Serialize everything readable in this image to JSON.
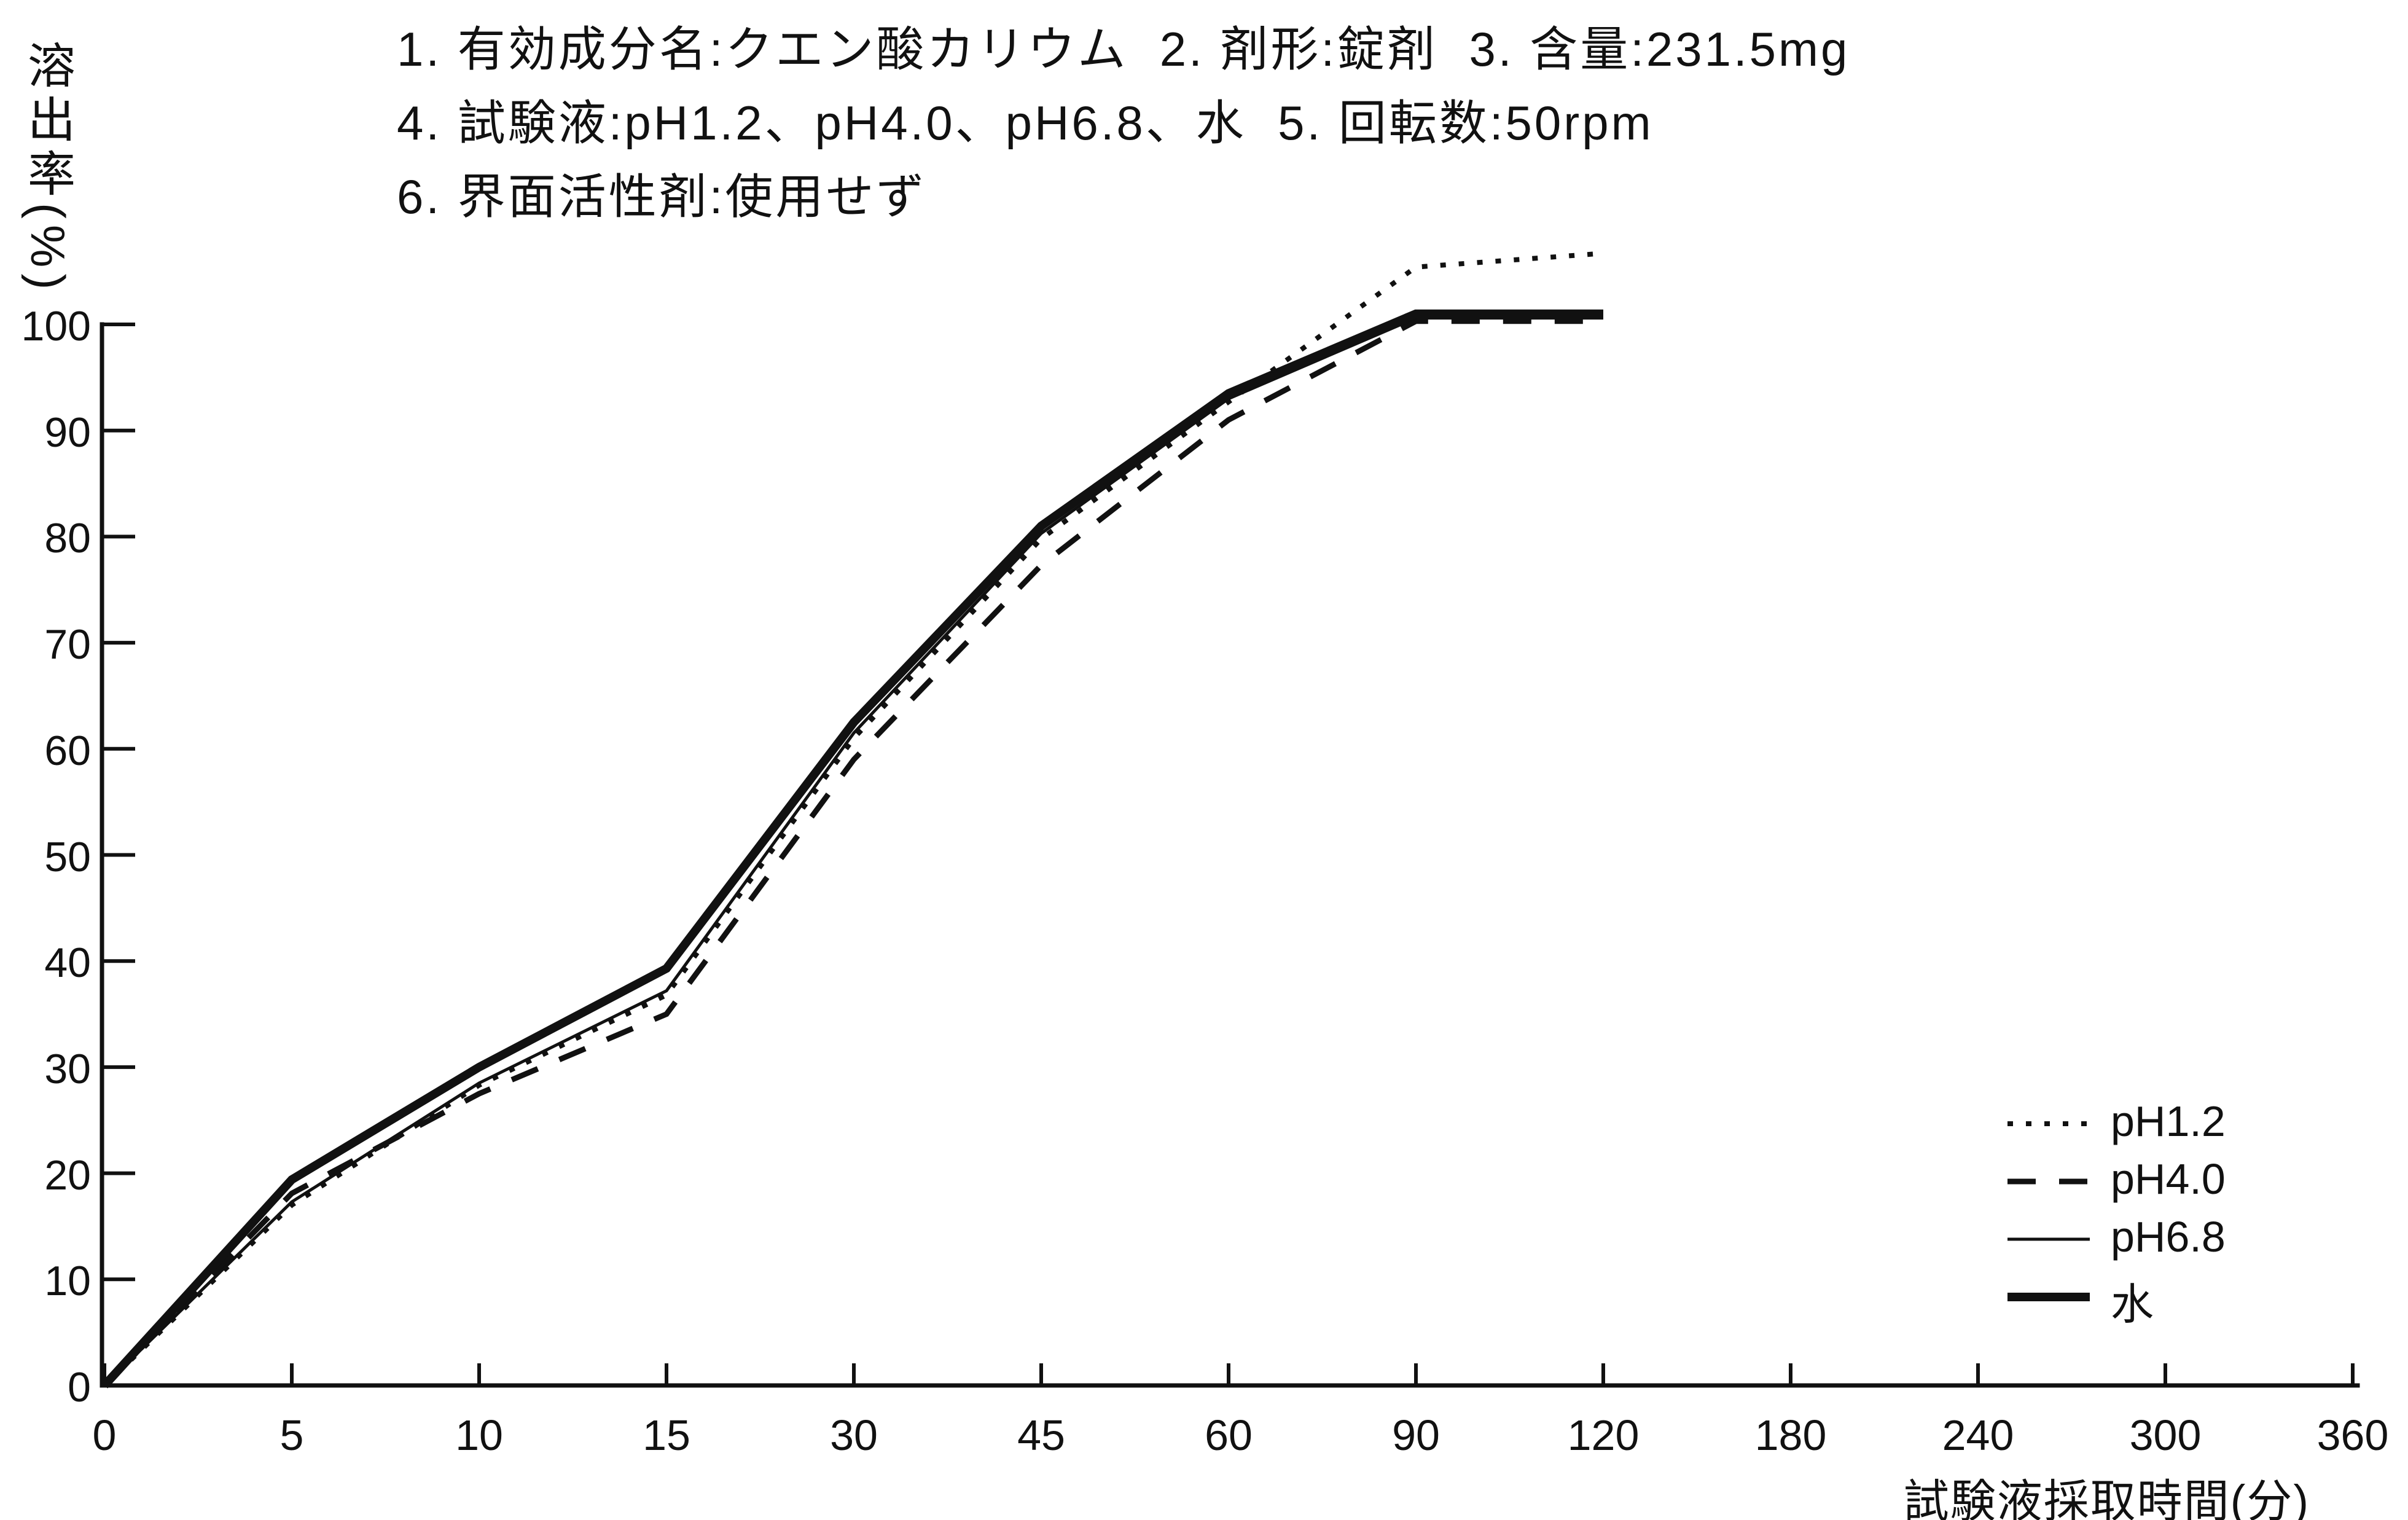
{
  "header": {
    "line1": "1. 有効成分名:クエン酸カリウム  2. 剤形:錠剤  3. 含量:231.5mg",
    "line2": "4. 試験液:pH1.2、pH4.0、pH6.8、水  5. 回転数:50rpm",
    "line3": "6. 界面活性剤:使用せず"
  },
  "y_axis": {
    "label": "溶出率(%)",
    "ticks": [
      "100",
      "90",
      "80",
      "70",
      "60",
      "50",
      "40",
      "30",
      "20",
      "10",
      "0"
    ]
  },
  "x_axis": {
    "label": "試験液採取時間(分)",
    "ticks": [
      "0",
      "5",
      "10",
      "15",
      "30",
      "45",
      "60",
      "90",
      "120",
      "180",
      "240",
      "300",
      "360"
    ]
  },
  "colors": {
    "ink": "#111111",
    "paper": "#ffffff"
  },
  "chart_data": {
    "type": "line",
    "title": "",
    "xlabel": "試験液採取時間(分)",
    "ylabel": "溶出率(%)",
    "x": [
      0,
      5,
      10,
      15,
      30,
      45,
      60,
      90,
      120
    ],
    "x_tick_labels": [
      0,
      5,
      10,
      15,
      30,
      45,
      60,
      90,
      120,
      180,
      240,
      300,
      360
    ],
    "x_axis_note": "ticks evenly spaced (non-linear time axis)",
    "ylim": [
      0,
      100
    ],
    "y_tick_step": 10,
    "grid": false,
    "legend_position": "lower right",
    "series": [
      {
        "name": "pH1.2",
        "style": "dotted",
        "values": [
          0,
          17.0,
          28.3,
          36.8,
          61.0,
          79.8,
          92.7,
          105.4,
          106.7
        ]
      },
      {
        "name": "pH4.0",
        "style": "dashed",
        "values": [
          0,
          18.1,
          27.5,
          35.0,
          59.0,
          77.3,
          91.0,
          100.3,
          100.3
        ]
      },
      {
        "name": "pH6.8",
        "style": "thin-solid",
        "values": [
          0,
          17.3,
          28.5,
          37.2,
          61.5,
          80.3,
          93.0,
          100.6,
          100.6
        ]
      },
      {
        "name": "水",
        "style": "thick-solid",
        "values": [
          0,
          19.4,
          30.0,
          39.3,
          62.5,
          81.0,
          93.5,
          101.0,
          101.0
        ]
      }
    ]
  }
}
